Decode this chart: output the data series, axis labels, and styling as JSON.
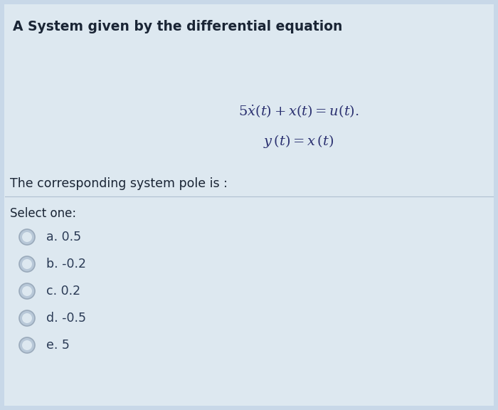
{
  "title": "A System given by the differential equation",
  "question": "The corresponding system pole is :",
  "select_text": "Select one:",
  "options": [
    "a. 0.5",
    "b. -0.2",
    "c. 0.2",
    "d. -0.5",
    "e. 5"
  ],
  "bg_color": "#c8d8e8",
  "box_color": "#dde8f0",
  "text_color": "#1a2535",
  "eq_color": "#2a3070",
  "option_color": "#2a3a55",
  "circle_edge": "#9aaabb",
  "circle_fill": "#b8c8d8"
}
